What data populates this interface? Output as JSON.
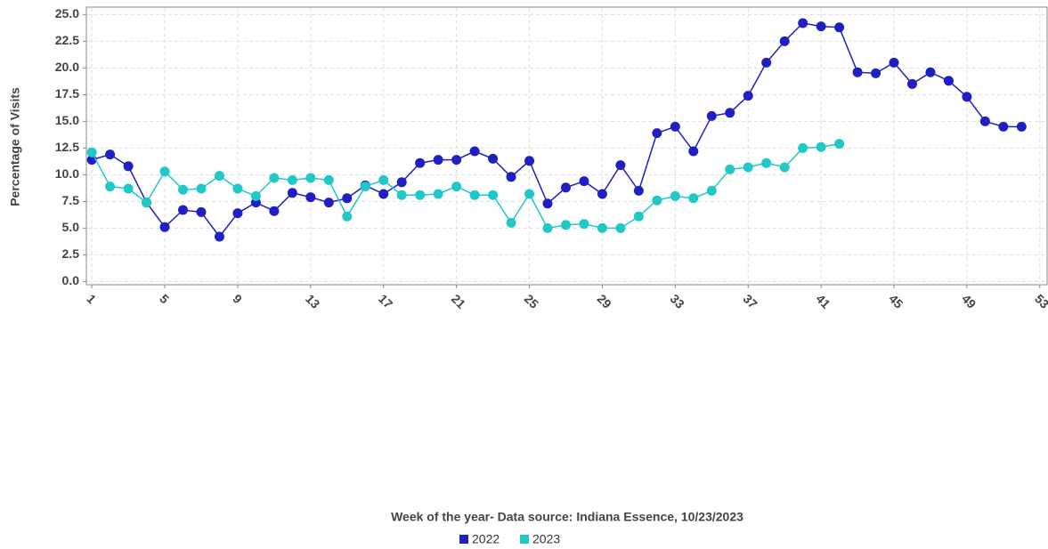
{
  "chart_data": {
    "type": "line",
    "xlabel": "Week of the year- Data source: Indiana Essence, 10/23/2023",
    "ylabel": "Percentage of Visits",
    "x": [
      1,
      2,
      3,
      4,
      5,
      6,
      7,
      8,
      9,
      10,
      11,
      12,
      13,
      14,
      15,
      16,
      17,
      18,
      19,
      20,
      21,
      22,
      23,
      24,
      25,
      26,
      27,
      28,
      29,
      30,
      31,
      32,
      33,
      34,
      35,
      36,
      37,
      38,
      39,
      40,
      41,
      42,
      43,
      44,
      45,
      46,
      47,
      48,
      49,
      50,
      51,
      52
    ],
    "series": [
      {
        "name": "2022",
        "color": "#1f1fc4",
        "values": [
          11.4,
          11.9,
          10.8,
          7.4,
          5.1,
          6.7,
          6.5,
          4.2,
          6.4,
          7.4,
          6.6,
          8.3,
          7.9,
          7.4,
          7.8,
          9.0,
          8.2,
          9.3,
          11.1,
          11.4,
          11.4,
          12.2,
          11.5,
          9.8,
          11.3,
          7.3,
          8.8,
          9.4,
          8.2,
          10.9,
          8.5,
          13.9,
          14.5,
          12.2,
          15.5,
          15.8,
          17.4,
          20.5,
          22.5,
          24.2,
          23.9,
          23.8,
          19.6,
          19.5,
          20.5,
          18.5,
          19.6,
          18.8,
          17.3,
          15.0,
          14.5,
          14.5
        ]
      },
      {
        "name": "2023",
        "color": "#20c8c8",
        "values": [
          12.1,
          8.9,
          8.7,
          7.4,
          10.3,
          8.6,
          8.7,
          9.9,
          8.7,
          8.0,
          9.7,
          9.5,
          9.7,
          9.5,
          6.1,
          8.9,
          9.5,
          8.1,
          8.1,
          8.2,
          8.9,
          8.1,
          8.1,
          5.5,
          8.2,
          5.0,
          5.3,
          5.4,
          5.0,
          5.0,
          6.1,
          7.6,
          8.0,
          7.8,
          8.5,
          10.5,
          10.7,
          11.1,
          10.7,
          12.5,
          12.6,
          12.9,
          null,
          null,
          null,
          null,
          null,
          null,
          null,
          null,
          null,
          null
        ]
      }
    ],
    "xlim": [
      0.7,
      53.4
    ],
    "xticks": [
      1,
      5,
      9,
      13,
      17,
      21,
      25,
      29,
      33,
      37,
      41,
      45,
      49,
      53
    ],
    "ylim": [
      -0.3,
      25.7
    ],
    "yticks": [
      {
        "value": 0,
        "label": "0.0"
      },
      2.5,
      {
        "value": 5,
        "label": "5.0"
      },
      7.5,
      {
        "value": 10,
        "label": "10.0"
      },
      12.5,
      {
        "value": 15,
        "label": "15.0"
      },
      17.5,
      {
        "value": 20,
        "label": "20.0"
      },
      22.5,
      {
        "value": 25,
        "label": "25.0"
      }
    ],
    "grid": true
  }
}
